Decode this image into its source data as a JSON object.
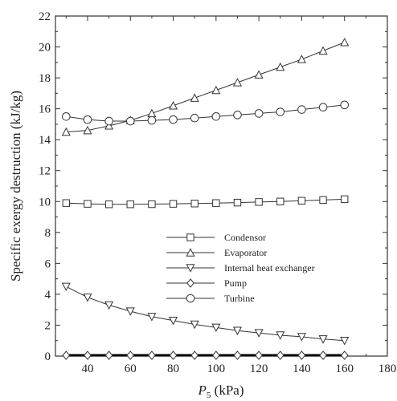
{
  "chart_data": {
    "type": "line",
    "xlabel": "P",
    "xlabel_subscript": "5",
    "xlabel_unit": " (kPa)",
    "ylabel": "Specific exergy destruction (kJ/kg)",
    "xlim": [
      25,
      180
    ],
    "ylim": [
      0,
      22
    ],
    "xticks": [
      40,
      60,
      80,
      100,
      120,
      140,
      160,
      180
    ],
    "yticks": [
      0,
      2,
      4,
      6,
      8,
      10,
      12,
      14,
      16,
      18,
      20,
      22
    ],
    "grid": false,
    "legend_position": "center-right",
    "x": [
      30,
      40,
      50,
      60,
      70,
      80,
      90,
      100,
      110,
      120,
      130,
      140,
      150,
      160
    ],
    "series": [
      {
        "name": "Condensor",
        "marker": "square",
        "values": [
          9.9,
          9.85,
          9.82,
          9.82,
          9.83,
          9.85,
          9.87,
          9.9,
          9.93,
          9.97,
          10.0,
          10.05,
          10.1,
          10.15
        ]
      },
      {
        "name": "Evaporator",
        "marker": "triangle-up",
        "values": [
          14.5,
          14.6,
          14.9,
          15.25,
          15.7,
          16.2,
          16.7,
          17.2,
          17.7,
          18.2,
          18.7,
          19.2,
          19.75,
          20.3
        ]
      },
      {
        "name": "Internal heat exchanger",
        "marker": "triangle-down",
        "values": [
          4.5,
          3.8,
          3.3,
          2.9,
          2.55,
          2.3,
          2.05,
          1.85,
          1.65,
          1.5,
          1.35,
          1.25,
          1.1,
          1.0
        ]
      },
      {
        "name": "Pump",
        "marker": "diamond",
        "values": [
          0.05,
          0.05,
          0.05,
          0.05,
          0.05,
          0.05,
          0.05,
          0.05,
          0.05,
          0.05,
          0.05,
          0.05,
          0.05,
          0.05
        ]
      },
      {
        "name": "Turbine",
        "marker": "circle",
        "values": [
          15.5,
          15.3,
          15.2,
          15.2,
          15.25,
          15.3,
          15.4,
          15.5,
          15.6,
          15.7,
          15.8,
          15.95,
          16.1,
          16.25
        ]
      }
    ]
  }
}
